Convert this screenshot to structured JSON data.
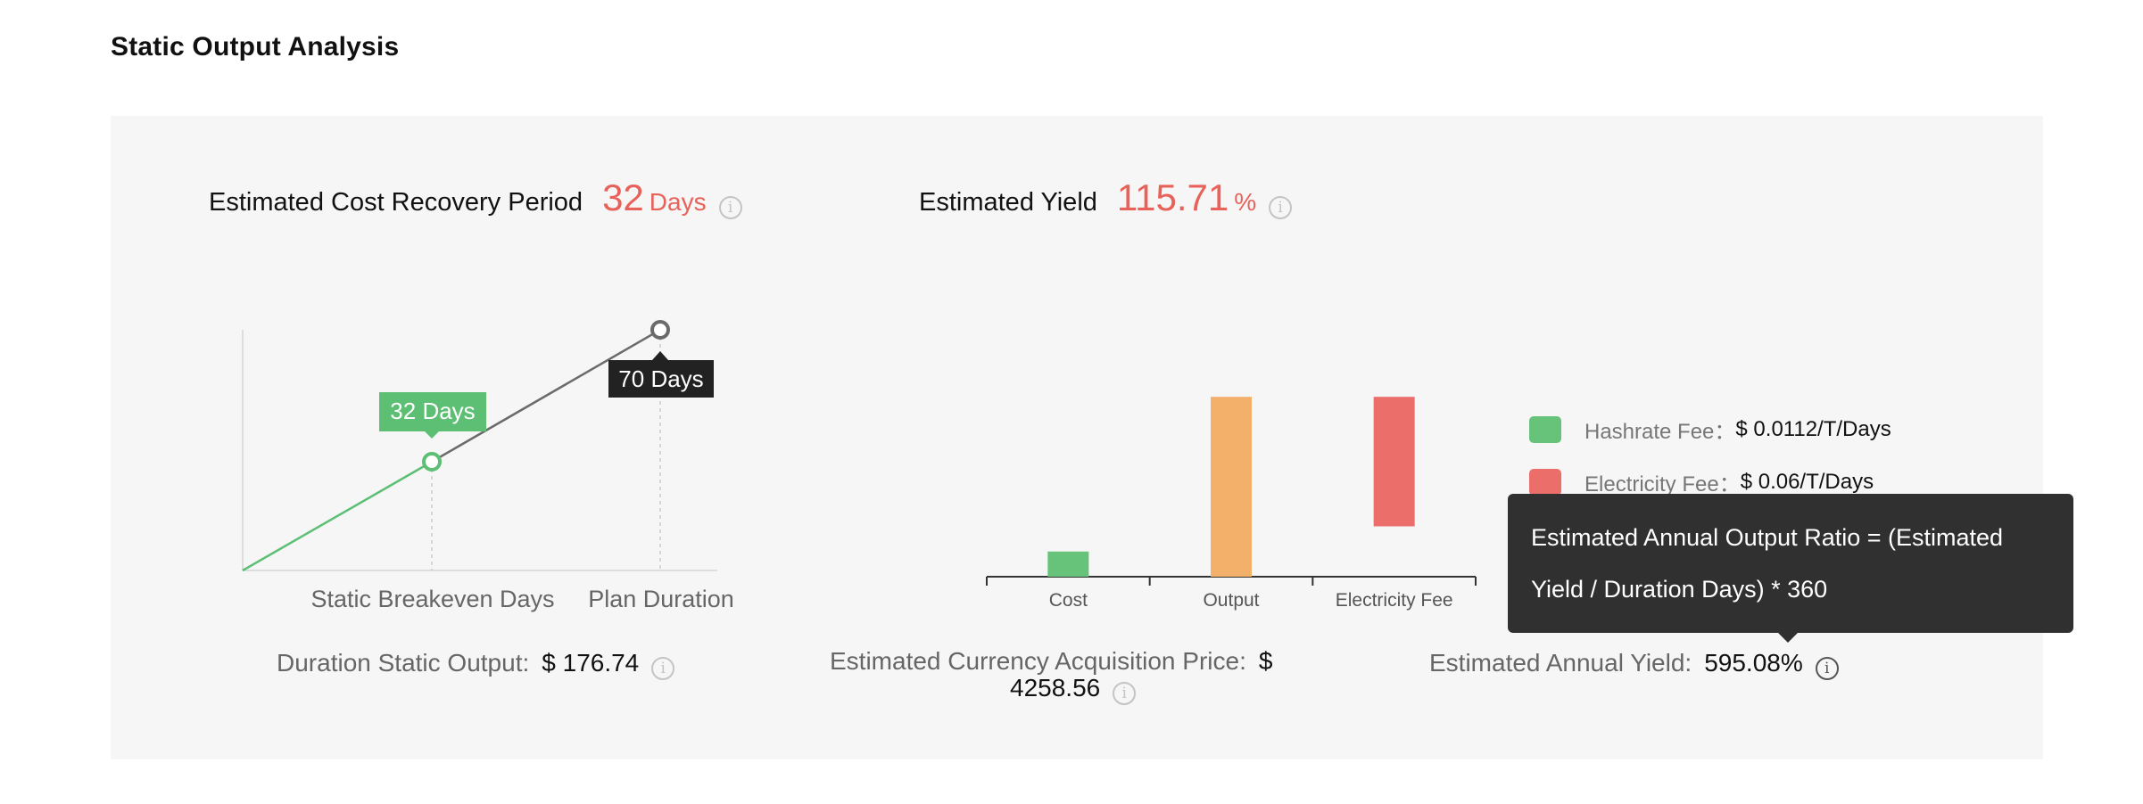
{
  "page_title": "Static Output Analysis",
  "recovery": {
    "label": "Estimated Cost Recovery Period",
    "value": "32",
    "unit": "Days"
  },
  "yield": {
    "label": "Estimated Yield",
    "value": "115.71",
    "unit": "%"
  },
  "line_chart": {
    "type": "line",
    "breakeven_label": "32 Days",
    "plan_label": "70 Days",
    "breakeven_days": 32,
    "plan_days": 70,
    "x_labels": [
      "Static Breakeven Days",
      "Plan Duration"
    ],
    "colors": {
      "breakeven": "#5cbf73",
      "plan": "#6b6b6b",
      "plan_tag": "#222222"
    }
  },
  "bar_chart": {
    "type": "bar",
    "categories": [
      "Cost",
      "Output",
      "Electricity Fee"
    ],
    "values": [
      14,
      100,
      72
    ],
    "ylim": [
      0,
      110
    ],
    "colors": [
      "#66c379",
      "#f3b06b",
      "#ec6e6a"
    ]
  },
  "legend": [
    {
      "label": "Hashrate Fee：",
      "value": "$ 0.0112/T/Days",
      "color": "#66c379"
    },
    {
      "label": "Electricity Fee：",
      "value": "$ 0.06/T/Days",
      "color": "#ec6e6a"
    }
  ],
  "stats": {
    "duration_output": {
      "label": "Duration Static Output:",
      "value": "$ 176.74"
    },
    "acquisition_price": {
      "label": "Estimated Currency Acquisition Price:",
      "value_line1": "$",
      "value_line2": "4258.56"
    },
    "annual_yield": {
      "label": "Estimated Annual Yield:",
      "value": "595.08%"
    }
  },
  "tooltip": {
    "line1": "Estimated Annual Output Ratio = (Estimated",
    "line2": "Yield / Duration Days) * 360"
  },
  "icons": {
    "info": "info-circle-icon",
    "info_glyph": "i"
  }
}
